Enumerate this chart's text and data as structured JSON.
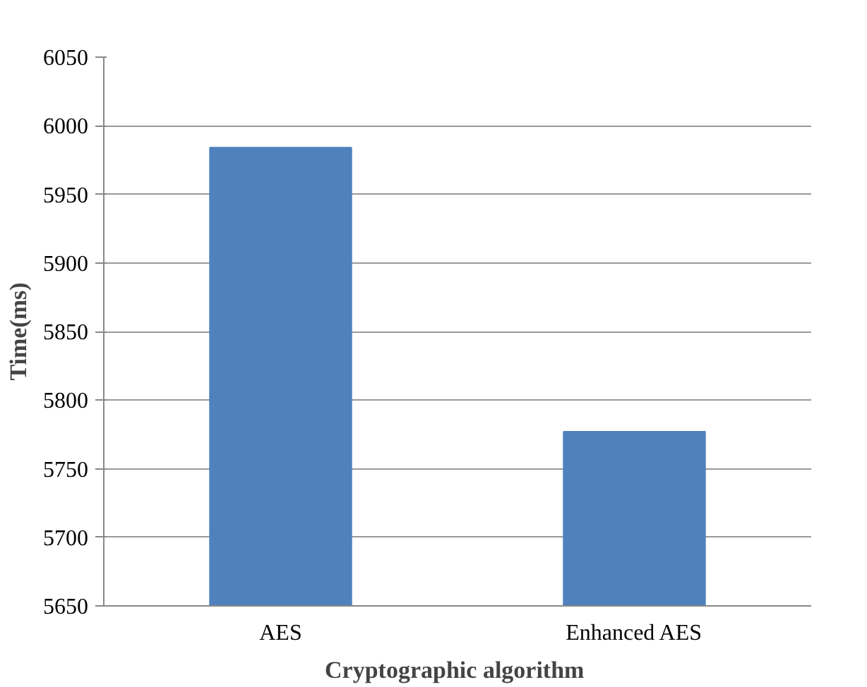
{
  "chart_data": {
    "type": "bar",
    "xlabel": "Cryptographic  algorithm",
    "ylabel": "Time(ms)",
    "categories": [
      "AES",
      "Enhanced AES"
    ],
    "values": [
      5984,
      5777
    ],
    "color": "#4f81bd",
    "ylim": [
      5650,
      6050
    ],
    "yticks": [
      5650,
      5700,
      5750,
      5800,
      5850,
      5900,
      5950,
      6000,
      6050
    ],
    "grid": "y"
  }
}
